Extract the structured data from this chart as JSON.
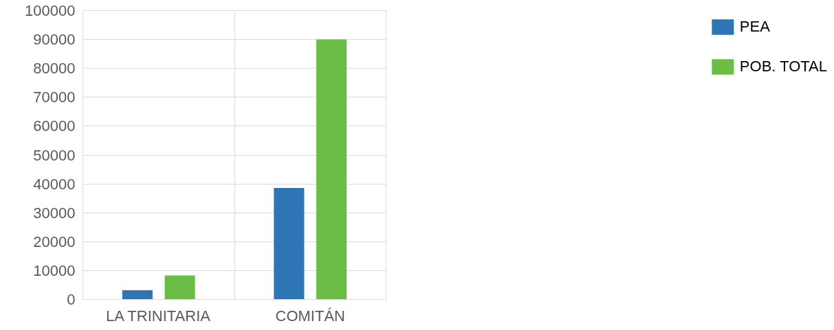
{
  "chart_data": {
    "type": "bar",
    "categories": [
      "LA TRINITARIA",
      "COMITÁN"
    ],
    "series": [
      {
        "name": "PEA",
        "color": "#2e75b6",
        "values": [
          3200,
          38600
        ]
      },
      {
        "name": "POB. TOTAL",
        "color": "#6abd45",
        "values": [
          8300,
          90000
        ]
      }
    ],
    "ylim": [
      0,
      100000
    ],
    "yticks": [
      0,
      10000,
      20000,
      30000,
      40000,
      50000,
      60000,
      70000,
      80000,
      90000,
      100000
    ],
    "grid": true,
    "legend": "right"
  }
}
